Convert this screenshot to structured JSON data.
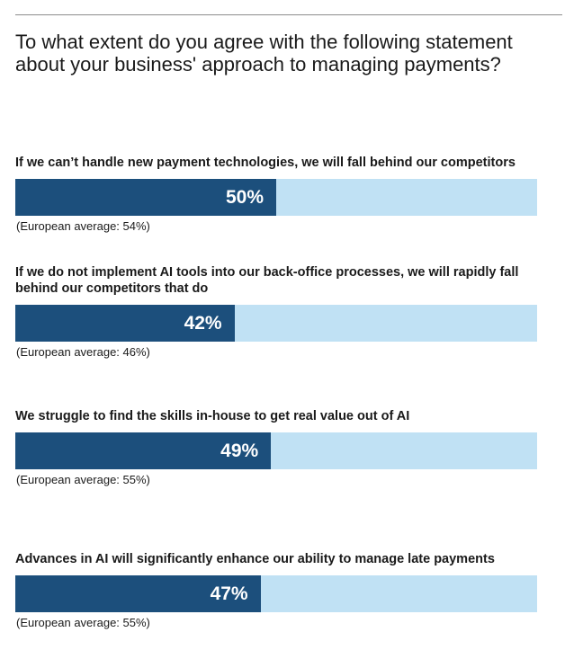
{
  "title": "To what extent do you agree with the following statement about your business' approach to managing payments?",
  "colors": {
    "fill": "#1c4f7c",
    "track": "#c0e1f4",
    "value_text": "#ffffff"
  },
  "chart_data": {
    "type": "bar",
    "orientation": "horizontal",
    "title": "To what extent do you agree with the following statement about your business' approach to managing payments?",
    "xlim": [
      0,
      100
    ],
    "grid": false,
    "categories": [
      "If we can’t handle new payment technologies, we will fall behind our competitors",
      "If we do not implement AI tools into our back-office processes, we will rapidly fall behind our competitors that do",
      "We struggle to find the skills in-house to get real value out of AI",
      "Advances in AI will significantly enhance our ability to manage late payments"
    ],
    "values": [
      50,
      42,
      49,
      47
    ],
    "value_labels": [
      "50%",
      "42%",
      "49%",
      "47%"
    ],
    "notes": [
      "(European average: 54%)",
      "(European average: 46%)",
      "(European average: 55%)",
      "(European average: 55%)"
    ],
    "european_average": [
      54,
      46,
      55,
      55
    ]
  }
}
